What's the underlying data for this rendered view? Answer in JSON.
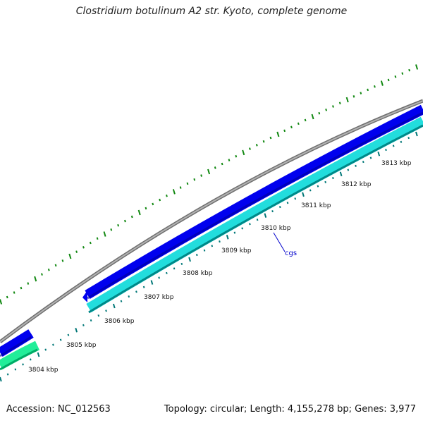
{
  "title": "Clostridium botulinum A2 str. Kyoto, complete genome",
  "footer": {
    "accession": "Accession: NC_012563",
    "summary": "Topology: circular; Length: 4,155,278 bp; Genes: 3,977"
  },
  "colors": {
    "backbone": "#8a8a8a",
    "forward_cds": "#0000ee",
    "reverse_cds": "#22cccc",
    "reverse_cds_alt": "#22ee99",
    "gc_ticks": "#118811",
    "scale_ticks": "#007777",
    "gene_label": "#0000cc"
  },
  "scale": {
    "unit": "kbp",
    "labels": [
      "3804 kbp",
      "3805 kbp",
      "3806 kbp",
      "3807 kbp",
      "3808 kbp",
      "3809 kbp",
      "3810 kbp",
      "3811 kbp",
      "3812 kbp",
      "3813 kbp"
    ]
  },
  "gene_labels": [
    {
      "label": "cgs"
    }
  ]
}
